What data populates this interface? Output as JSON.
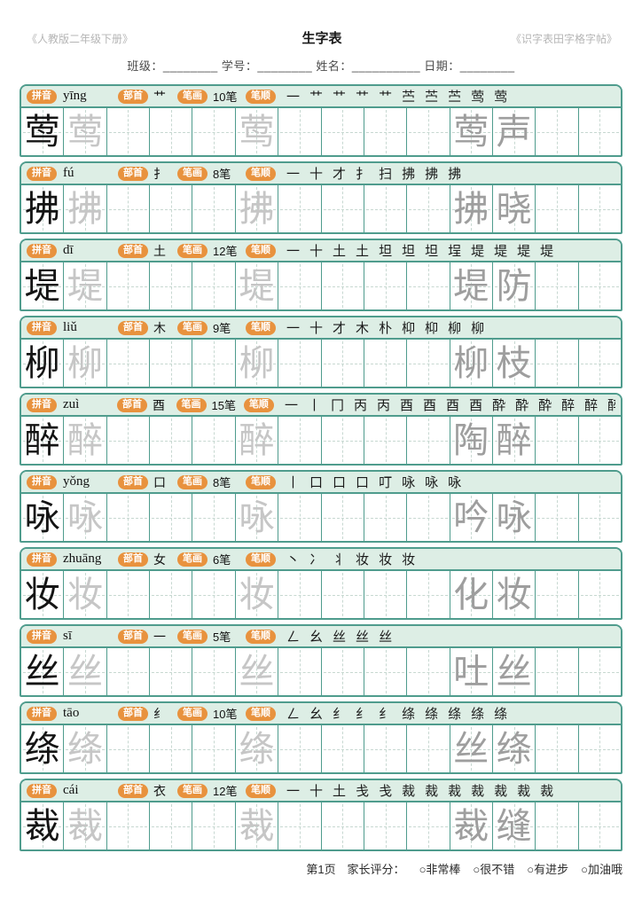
{
  "header": {
    "edition": "《人教版二年级下册》",
    "title": "生字表",
    "booklet": "《识字表田字格字帖》",
    "info_line": "班级：________  学号：________  姓名：__________  日期：________"
  },
  "labels": {
    "pinyin": "拼音",
    "radical": "部首",
    "strokes": "笔画",
    "stroke_order": "笔顺"
  },
  "grid": {
    "cells_per_row": 14,
    "ink_cell": 1,
    "trace_cells": [
      2,
      6
    ],
    "word_cells": [
      11,
      12
    ]
  },
  "rows": [
    {
      "char": "莺",
      "pinyin": "yīng",
      "radical": "艹",
      "stroke_count": "10笔",
      "stroke_order": [
        "一",
        "艹",
        "艹",
        "艹",
        "艹",
        "苎",
        "苎",
        "苎",
        "莺",
        "莺"
      ],
      "word": "莺声"
    },
    {
      "char": "拂",
      "pinyin": "fú",
      "radical": "扌",
      "stroke_count": "8笔",
      "stroke_order": [
        "一",
        "十",
        "才",
        "扌",
        "扫",
        "拂",
        "拂",
        "拂"
      ],
      "word": "拂晓"
    },
    {
      "char": "堤",
      "pinyin": "dī",
      "radical": "土",
      "stroke_count": "12笔",
      "stroke_order": [
        "一",
        "十",
        "土",
        "土",
        "坦",
        "坦",
        "坦",
        "埕",
        "堤",
        "堤",
        "堤",
        "堤"
      ],
      "word": "堤防"
    },
    {
      "char": "柳",
      "pinyin": "liǔ",
      "radical": "木",
      "stroke_count": "9笔",
      "stroke_order": [
        "一",
        "十",
        "才",
        "木",
        "朴",
        "枊",
        "枊",
        "柳",
        "柳"
      ],
      "word": "柳枝"
    },
    {
      "char": "醉",
      "pinyin": "zuì",
      "radical": "酉",
      "stroke_count": "15笔",
      "stroke_order": [
        "一",
        "丨",
        "冂",
        "丙",
        "丙",
        "酉",
        "酉",
        "酉",
        "酉",
        "酔",
        "酔",
        "酔",
        "醉",
        "醉",
        "醉"
      ],
      "word": "陶醉"
    },
    {
      "char": "咏",
      "pinyin": "yǒng",
      "radical": "口",
      "stroke_count": "8笔",
      "stroke_order": [
        "丨",
        "口",
        "口",
        "口",
        "叮",
        "咏",
        "咏",
        "咏"
      ],
      "word": "吟咏"
    },
    {
      "char": "妆",
      "pinyin": "zhuāng",
      "radical": "女",
      "stroke_count": "6笔",
      "stroke_order": [
        "丶",
        "冫",
        "丬",
        "妆",
        "妆",
        "妆"
      ],
      "word": "化妆"
    },
    {
      "char": "丝",
      "pinyin": "sī",
      "radical": "一",
      "stroke_count": "5笔",
      "stroke_order": [
        "ㄥ",
        "幺",
        "丝",
        "丝",
        "丝"
      ],
      "word": "吐丝"
    },
    {
      "char": "绦",
      "pinyin": "tāo",
      "radical": "纟",
      "stroke_count": "10笔",
      "stroke_order": [
        "ㄥ",
        "幺",
        "纟",
        "纟",
        "纟",
        "绦",
        "绦",
        "绦",
        "绦",
        "绦"
      ],
      "word": "丝绦"
    },
    {
      "char": "裁",
      "pinyin": "cái",
      "radical": "衣",
      "stroke_count": "12笔",
      "stroke_order": [
        "一",
        "十",
        "土",
        "戋",
        "戋",
        "裁",
        "裁",
        "裁",
        "裁",
        "裁",
        "裁",
        "裁"
      ],
      "word": "裁缝"
    }
  ],
  "footer": {
    "page_number": "第1页",
    "rating_label": "家长评分：",
    "ratings": [
      "○非常棒",
      "○很不错",
      "○有进步",
      "○加油哦"
    ]
  },
  "colors": {
    "accent_teal": "#4f9c8d",
    "row_header_bg": "#ddeee5",
    "badge_orange": "#e8923e",
    "trace_gray": "#c6c6c6"
  }
}
